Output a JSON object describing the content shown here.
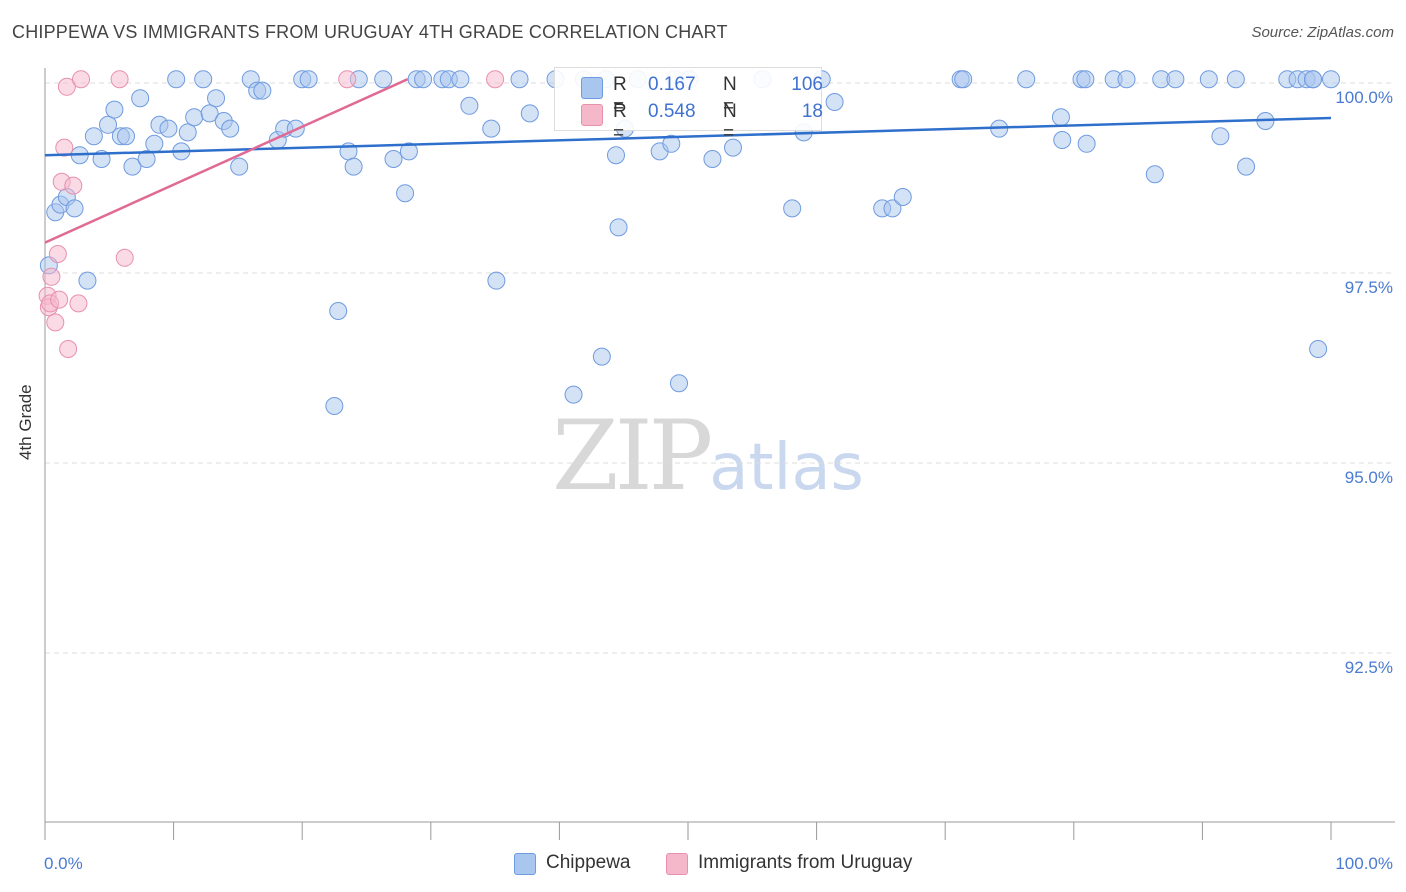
{
  "title": "CHIPPEWA VS IMMIGRANTS FROM URUGUAY 4TH GRADE CORRELATION CHART",
  "source": "Source: ZipAtlas.com",
  "watermark": {
    "zip": "ZIP",
    "atlas": "atlas"
  },
  "legend": {
    "rows": [
      {
        "r_label": "R =",
        "r_value": "0.167",
        "n_label": "N =",
        "n_value": "106"
      },
      {
        "r_label": "R =",
        "r_value": "0.548",
        "n_label": "N =",
        "n_value": "18"
      }
    ]
  },
  "bottom_legend": [
    "Chippewa",
    "Immigrants from Uruguay"
  ],
  "colors": {
    "blue_fill": "#a9c6ee",
    "blue_stroke": "#6f9be0",
    "blue_line": "#2f6fcc",
    "pink_fill": "#f5b8cb",
    "pink_stroke": "#e890ad",
    "pink_line": "#e06a94",
    "grid": "#dcdcdc",
    "tick_text": "#4a7bd0"
  },
  "chart_data": {
    "type": "scatter",
    "title": "CHIPPEWA VS IMMIGRANTS FROM URUGUAY 4TH GRADE CORRELATION CHART",
    "xlabel": "",
    "ylabel": "4th Grade",
    "xlim": [
      0,
      100
    ],
    "ylim": [
      90.5,
      100.3
    ],
    "x_tick_labels": [
      "0.0%",
      "100.0%"
    ],
    "y_ticks": [
      92.5,
      95.0,
      97.5,
      100.0
    ],
    "y_tick_labels": [
      "92.5%",
      "95.0%",
      "97.5%",
      "100.0%"
    ],
    "series": [
      {
        "name": "Chippewa",
        "r": 0.167,
        "n": 106,
        "trend": {
          "x": [
            0,
            100
          ],
          "y": [
            99.05,
            99.54
          ]
        },
        "points": [
          [
            0.3,
            97.6
          ],
          [
            0.8,
            98.3
          ],
          [
            1.2,
            98.4
          ],
          [
            1.7,
            98.5
          ],
          [
            2.3,
            98.35
          ],
          [
            2.7,
            99.05
          ],
          [
            3.3,
            97.4
          ],
          [
            3.8,
            99.3
          ],
          [
            4.4,
            99.0
          ],
          [
            4.9,
            99.45
          ],
          [
            5.4,
            99.65
          ],
          [
            5.9,
            99.3
          ],
          [
            6.3,
            99.3
          ],
          [
            6.8,
            98.9
          ],
          [
            7.4,
            99.8
          ],
          [
            7.9,
            99.0
          ],
          [
            8.5,
            99.2
          ],
          [
            8.9,
            99.45
          ],
          [
            9.6,
            99.4
          ],
          [
            10.2,
            100.05
          ],
          [
            10.6,
            99.1
          ],
          [
            11.1,
            99.35
          ],
          [
            11.6,
            99.55
          ],
          [
            12.3,
            100.05
          ],
          [
            12.8,
            99.6
          ],
          [
            13.3,
            99.8
          ],
          [
            13.9,
            99.5
          ],
          [
            14.4,
            99.4
          ],
          [
            15.1,
            98.9
          ],
          [
            16.0,
            100.05
          ],
          [
            16.5,
            99.9
          ],
          [
            16.9,
            99.9
          ],
          [
            18.1,
            99.25
          ],
          [
            18.6,
            99.4
          ],
          [
            19.5,
            99.4
          ],
          [
            20.0,
            100.05
          ],
          [
            20.5,
            100.05
          ],
          [
            22.5,
            95.75
          ],
          [
            22.8,
            97.0
          ],
          [
            23.6,
            99.1
          ],
          [
            24.0,
            98.9
          ],
          [
            24.4,
            100.05
          ],
          [
            26.3,
            100.05
          ],
          [
            27.1,
            99.0
          ],
          [
            28.0,
            98.55
          ],
          [
            28.3,
            99.1
          ],
          [
            28.9,
            100.05
          ],
          [
            29.4,
            100.05
          ],
          [
            30.9,
            100.05
          ],
          [
            31.4,
            100.05
          ],
          [
            32.3,
            100.05
          ],
          [
            33.0,
            99.7
          ],
          [
            34.7,
            99.4
          ],
          [
            35.1,
            97.4
          ],
          [
            36.9,
            100.05
          ],
          [
            37.7,
            99.6
          ],
          [
            39.7,
            100.05
          ],
          [
            41.1,
            95.9
          ],
          [
            41.9,
            100.05
          ],
          [
            43.3,
            96.4
          ],
          [
            43.6,
            100.05
          ],
          [
            44.4,
            99.05
          ],
          [
            44.6,
            98.1
          ],
          [
            45.1,
            99.4
          ],
          [
            46.1,
            100.05
          ],
          [
            47.8,
            99.1
          ],
          [
            48.7,
            99.2
          ],
          [
            49.0,
            100.05
          ],
          [
            49.3,
            96.05
          ],
          [
            50.1,
            100.05
          ],
          [
            51.9,
            99.0
          ],
          [
            53.5,
            99.15
          ],
          [
            55.8,
            100.05
          ],
          [
            58.1,
            98.35
          ],
          [
            59.0,
            99.35
          ],
          [
            60.4,
            100.05
          ],
          [
            61.4,
            99.75
          ],
          [
            65.1,
            98.35
          ],
          [
            65.9,
            98.35
          ],
          [
            66.7,
            98.5
          ],
          [
            71.2,
            100.05
          ],
          [
            71.4,
            100.05
          ],
          [
            74.2,
            99.4
          ],
          [
            76.3,
            100.05
          ],
          [
            79.0,
            99.55
          ],
          [
            79.1,
            99.25
          ],
          [
            80.6,
            100.05
          ],
          [
            80.9,
            100.05
          ],
          [
            81.0,
            99.2
          ],
          [
            83.1,
            100.05
          ],
          [
            84.1,
            100.05
          ],
          [
            86.3,
            98.8
          ],
          [
            86.8,
            100.05
          ],
          [
            87.9,
            100.05
          ],
          [
            90.5,
            100.05
          ],
          [
            91.4,
            99.3
          ],
          [
            92.6,
            100.05
          ],
          [
            93.4,
            98.9
          ],
          [
            94.9,
            99.5
          ],
          [
            96.6,
            100.05
          ],
          [
            97.4,
            100.05
          ],
          [
            98.1,
            100.05
          ],
          [
            98.6,
            100.05
          ],
          [
            98.6,
            100.05
          ],
          [
            99.0,
            96.5
          ],
          [
            100.0,
            100.05
          ]
        ]
      },
      {
        "name": "Immigrants from Uruguay",
        "r": 0.548,
        "n": 18,
        "trend": {
          "x": [
            0,
            28.2
          ],
          "y": [
            97.9,
            100.05
          ]
        },
        "points": [
          [
            0.2,
            97.2
          ],
          [
            0.3,
            97.05
          ],
          [
            0.4,
            97.1
          ],
          [
            0.5,
            97.45
          ],
          [
            0.8,
            96.85
          ],
          [
            1.0,
            97.75
          ],
          [
            1.1,
            97.15
          ],
          [
            1.3,
            98.7
          ],
          [
            1.5,
            99.15
          ],
          [
            1.7,
            99.95
          ],
          [
            1.8,
            96.5
          ],
          [
            2.2,
            98.65
          ],
          [
            2.6,
            97.1
          ],
          [
            2.8,
            100.05
          ],
          [
            5.8,
            100.05
          ],
          [
            6.2,
            97.7
          ],
          [
            23.5,
            100.05
          ],
          [
            35.0,
            100.05
          ]
        ]
      }
    ]
  }
}
